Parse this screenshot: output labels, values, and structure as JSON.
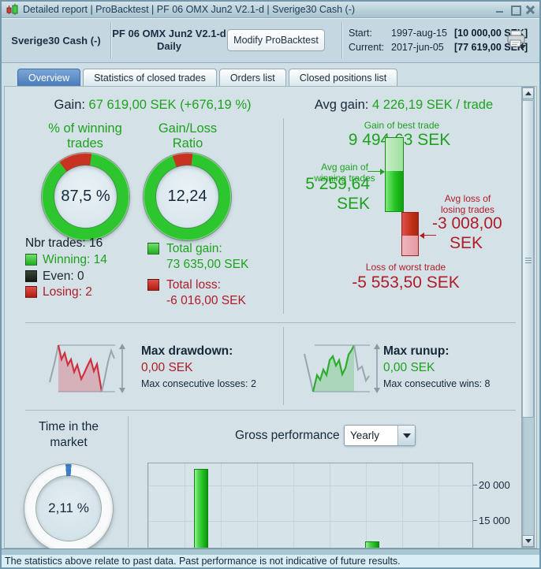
{
  "window": {
    "title": "Detailed report | ProBacktest | PF 06 OMX Jun2 V2.1-d | Sverige30 Cash (-)"
  },
  "header": {
    "instrument": "Sverige30 Cash (-)",
    "strategy": "PF 06 OMX Jun2 V2.1-d",
    "timeframe": "Daily",
    "modify_button": "Modify ProBacktest",
    "start": {
      "label": "Start:",
      "date": "1997-aug-15",
      "value": "[10 000,00 SEK]"
    },
    "current": {
      "label": "Current:",
      "date": "2017-jun-05",
      "value": "[77 619,00 SEK]"
    }
  },
  "tabs": [
    {
      "label": "Overview",
      "selected": true
    },
    {
      "label": "Statistics of closed trades",
      "selected": false
    },
    {
      "label": "Orders list",
      "selected": false
    },
    {
      "label": "Closed positions list",
      "selected": false
    }
  ],
  "overview": {
    "gain": {
      "label": "Gain:",
      "value": "67 619,00 SEK (+676,19 %)"
    },
    "avg_gain": {
      "label": "Avg gain:",
      "value": "4 226,19 SEK / trade"
    },
    "winning_title_line1": "% of winning",
    "winning_title_line2": "trades",
    "ratio_title_line1": "Gain/Loss",
    "ratio_title_line2": "Ratio",
    "nbr_trades": "Nbr trades: 16",
    "legend": [
      {
        "label": "Winning: 14",
        "color": "#2ec62e"
      },
      {
        "label": "Even: 0",
        "color": "#1d251d"
      },
      {
        "label": "Losing: 2",
        "color": "#cc2424"
      }
    ],
    "total_gain": {
      "label": "Total gain:",
      "value": "73 635,00 SEK"
    },
    "total_loss": {
      "label": "Total loss:",
      "value": "-6 016,00 SEK"
    },
    "best_trade": {
      "label": "Gain of best trade",
      "value": "9 494,63 SEK"
    },
    "avg_win": {
      "label_line1": "Avg gain of",
      "label_line2": "winning trades",
      "value": "5 259,64",
      "unit": "SEK"
    },
    "avg_loss": {
      "label_line1": "Avg loss of",
      "label_line2": "losing trades",
      "value": "-3 008,00",
      "unit": "SEK"
    },
    "worst_trade": {
      "label": "Loss of worst trade",
      "value": "-5 553,50 SEK"
    }
  },
  "risk": {
    "drawdown": {
      "title": "Max drawdown:",
      "value": "0,00 SEK",
      "sub": "Max consecutive losses: 2"
    },
    "runup": {
      "title": "Max runup:",
      "value": "0,00 SEK",
      "sub": "Max consecutive wins: 8"
    }
  },
  "bottom": {
    "time_title_line1": "Time in the",
    "time_title_line2": "market",
    "gross_title": "Gross performance",
    "period": "Yearly"
  },
  "status_bar": "The statistics above relate to past data. Past performance is not indicative of future results.",
  "colors": {
    "text_green": "#1ea21e",
    "text_dark_red": "#b01c28",
    "text_navy": "#15293a",
    "tab_selected": "#4a7cba",
    "donut_green": "#2ec62e",
    "donut_red": "#c83220",
    "time_blue": "#3f7fc6",
    "bar_green": "#17b517"
  },
  "chart_data": [
    {
      "type": "pie",
      "title": "% of winning trades",
      "center_label": "87,5 %",
      "rotate_deg": -37,
      "slices": [
        {
          "label": "Losing trades",
          "value": 12.5,
          "color": "#c83220"
        },
        {
          "label": "Winning trades",
          "value": 87.5,
          "color": "#2ec62e"
        }
      ]
    },
    {
      "type": "pie",
      "title": "Gain/Loss Ratio",
      "center_label": "12,24",
      "rotate_deg": -20,
      "slices": [
        {
          "label": "Total loss share",
          "value": 7.55,
          "color": "#c83220"
        },
        {
          "label": "Total gain share",
          "value": 92.45,
          "color": "#2ec62e"
        }
      ]
    },
    {
      "type": "pie",
      "title": "Time in the market",
      "center_label": "2,11 %",
      "rotate_deg": -4,
      "slices": [
        {
          "label": "In the market",
          "value": 2.11,
          "color": "#3f7fc6"
        },
        {
          "label": "Out of the market",
          "value": 97.89,
          "color": "#f7f9fa"
        }
      ]
    },
    {
      "type": "bar",
      "title": "Gross performance",
      "period": "Yearly",
      "ylim_visible": [
        10500,
        23500
      ],
      "grid": true,
      "y_ticks": [
        {
          "label": "20 000",
          "value": 20000
        },
        {
          "label": "15 000",
          "value": 15000
        }
      ],
      "bars": [
        {
          "x_frac": 0.162,
          "value": 22300
        },
        {
          "x_frac": 0.69,
          "value": 12150
        }
      ]
    }
  ]
}
